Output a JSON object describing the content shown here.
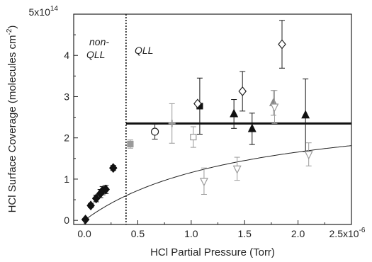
{
  "chart_data": {
    "type": "scatter",
    "title": "",
    "xlabel": "HCl Partial Pressure (Torr)",
    "ylabel": "HCl Surface Coverage (molecules cm",
    "ylabel_sup": "-2",
    "ylabel_tail": ")",
    "xlim": [
      -0.1,
      2.5
    ],
    "ylim": [
      -0.1,
      5
    ],
    "x_ticks": [
      {
        "value": 0.0,
        "label": "0.0"
      },
      {
        "value": 0.5,
        "label": "0.5"
      },
      {
        "value": 1.0,
        "label": "1.0"
      },
      {
        "value": 1.5,
        "label": "1.5"
      },
      {
        "value": 2.0,
        "label": "2.0"
      },
      {
        "value": 2.5,
        "label": "2.5x10",
        "sup": "-6"
      }
    ],
    "y_ticks": [
      {
        "value": 0,
        "label": "0"
      },
      {
        "value": 1,
        "label": "1"
      },
      {
        "value": 2,
        "label": "2"
      },
      {
        "value": 3,
        "label": "3"
      },
      {
        "value": 4,
        "label": "4"
      },
      {
        "value": 5,
        "label": "5x10",
        "sup": "14"
      }
    ],
    "x_scale_note": "x values in units of 1e-6 Torr; y values in units of 1e14 molecules cm^-2",
    "region_divider_x": 0.39,
    "annotations": [
      {
        "text": "non-",
        "style": "italic"
      },
      {
        "text": "QLL",
        "style": "italic"
      },
      {
        "text": "QLL",
        "style": "italic"
      }
    ],
    "plateau_line": {
      "x": [
        0.39,
        2.5
      ],
      "y": 2.35
    },
    "fit_curve_params": {
      "a": 2.9,
      "b": 1.5
    },
    "series": [
      {
        "marker": "diamond-filled",
        "color": "#111111",
        "points": [
          {
            "x": 0.01,
            "y": 0.02,
            "err": 0.0
          },
          {
            "x": 0.06,
            "y": 0.36,
            "err": 0.05
          },
          {
            "x": 0.11,
            "y": 0.53,
            "err": 0.08
          },
          {
            "x": 0.15,
            "y": 0.65,
            "err": 0.1
          },
          {
            "x": 0.17,
            "y": 0.72,
            "err": 0.1
          },
          {
            "x": 0.2,
            "y": 0.75,
            "err": 0.1
          },
          {
            "x": 0.27,
            "y": 1.27,
            "err": 0.06
          }
        ]
      },
      {
        "marker": "square-filled-gray",
        "color": "#9a9a9a",
        "points": [
          {
            "x": 0.43,
            "y": 1.85,
            "err": 0.1
          }
        ]
      },
      {
        "marker": "circle-open",
        "color": "#222222",
        "points": [
          {
            "x": 0.66,
            "y": 2.15,
            "err": 0.18
          }
        ]
      },
      {
        "marker": "cross-gray",
        "color": "#9a9a9a",
        "points": [
          {
            "x": 0.82,
            "y": 2.35,
            "err": 0.48
          }
        ]
      },
      {
        "marker": "square-open-gray",
        "color": "#9a9a9a",
        "points": [
          {
            "x": 1.02,
            "y": 2.02,
            "err": 0.25
          }
        ]
      },
      {
        "marker": "square-filled",
        "color": "#111111",
        "points": [
          {
            "x": 1.08,
            "y": 2.77,
            "err": 0.68
          }
        ]
      },
      {
        "marker": "diamond-open",
        "color": "#222222",
        "points": [
          {
            "x": 1.06,
            "y": 2.83,
            "err": 0.0
          },
          {
            "x": 1.48,
            "y": 3.13,
            "err": 0.48
          },
          {
            "x": 1.85,
            "y": 4.27,
            "err": 0.58
          }
        ]
      },
      {
        "marker": "triangle-up-filled",
        "color": "#111111",
        "points": [
          {
            "x": 1.4,
            "y": 2.58,
            "err": 0.35
          },
          {
            "x": 1.57,
            "y": 2.22,
            "err": 0.38
          },
          {
            "x": 2.07,
            "y": 2.55,
            "err": 0.88
          }
        ]
      },
      {
        "marker": "triangle-up-filled-gray",
        "color": "#888888",
        "points": [
          {
            "x": 1.77,
            "y": 2.85,
            "err": 0.3
          }
        ]
      },
      {
        "marker": "triangle-down-open",
        "color": "#9a9a9a",
        "points": [
          {
            "x": 1.12,
            "y": 0.95,
            "err": 0.32
          },
          {
            "x": 1.43,
            "y": 1.25,
            "err": 0.28
          },
          {
            "x": 1.78,
            "y": 2.75,
            "err": 0.4
          },
          {
            "x": 2.1,
            "y": 1.6,
            "err": 0.28
          }
        ]
      }
    ]
  }
}
